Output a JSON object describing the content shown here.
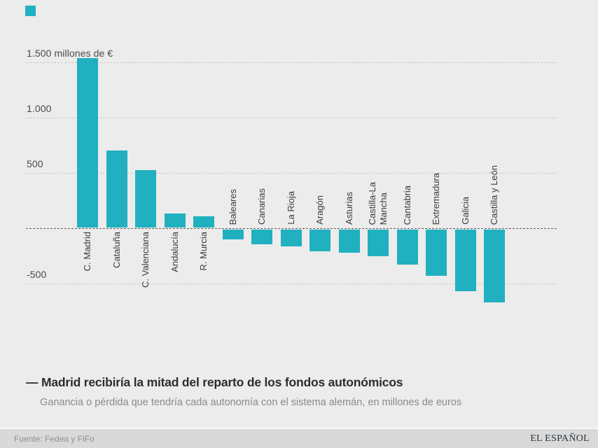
{
  "brand": {
    "mark_color": "#20b0bf",
    "logo_text": "EL ESPAÑOL"
  },
  "chart_data": {
    "type": "bar",
    "title": "Madrid recibiría la mitad del reparto de los fondos autonómicos",
    "subtitle": "Ganancia o pérdida que tendría cada autonomía con el sistema alemán, en millones de euros",
    "categories": [
      "C. Madrid",
      "Cataluña",
      "C. Valenciana",
      "Andalucía",
      "R. Murcia",
      "Baleares",
      "Canarias",
      "La Rioja",
      "Aragón",
      "Asturias",
      "Castilla-La Mancha",
      "Cantabria",
      "Extremadura",
      "Galicia",
      "Castilla y León"
    ],
    "values": [
      1530,
      695,
      520,
      125,
      100,
      -90,
      -130,
      -150,
      -195,
      -210,
      -240,
      -315,
      -415,
      -560,
      -660
    ],
    "wrap_label": "Castilla-La Mancha",
    "y_ticks": [
      {
        "value": 1500,
        "label": "1.500 millones de €"
      },
      {
        "value": 1000,
        "label": "1.000"
      },
      {
        "value": 500,
        "label": "500"
      },
      {
        "value": -500,
        "label": "-500"
      }
    ],
    "ylim": [
      -750,
      1550
    ],
    "xlabel": "",
    "ylabel": "millones de €",
    "grid": "horizontal dashed",
    "zero_line": true,
    "legend": "none",
    "bar_color": "#20b0bf"
  },
  "caption": {
    "title": "— Madrid recibiría la mitad del reparto de los fondos autonómicos",
    "subtitle": "Ganancia o pérdida que tendría cada autonomía con el sistema alemán, en millones de euros"
  },
  "footer": {
    "source": "Fuente: Fedea y FiFo",
    "logo": "EL ESPAÑOL"
  }
}
